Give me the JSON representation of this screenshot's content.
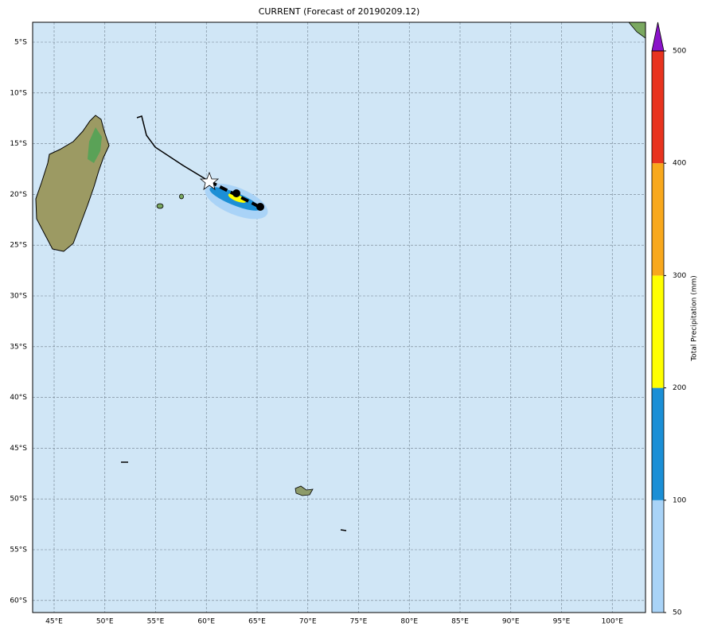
{
  "map": {
    "title": "CURRENT (Forecast of 20190209.12)",
    "lat_labels": [
      "5°S",
      "10°S",
      "15°S",
      "20°S",
      "25°S",
      "30°S",
      "35°S",
      "40°S",
      "45°S",
      "50°S",
      "55°S",
      "60°S"
    ],
    "lon_labels": [
      "45°E",
      "50°E",
      "55°E",
      "60°E",
      "65°E",
      "70°E",
      "75°E",
      "80°E",
      "85°E",
      "90°E",
      "95°E",
      "100°E"
    ],
    "colorbar": {
      "label": "Total Precipitation (mm)",
      "ticks": [
        50,
        100,
        200,
        300,
        400,
        500
      ],
      "colors": [
        "#a9d3f7",
        "#1b8fd6",
        "#ffff00",
        "#f8a81c",
        "#e8331f"
      ],
      "extend_color": "#8a12c9"
    }
  }
}
